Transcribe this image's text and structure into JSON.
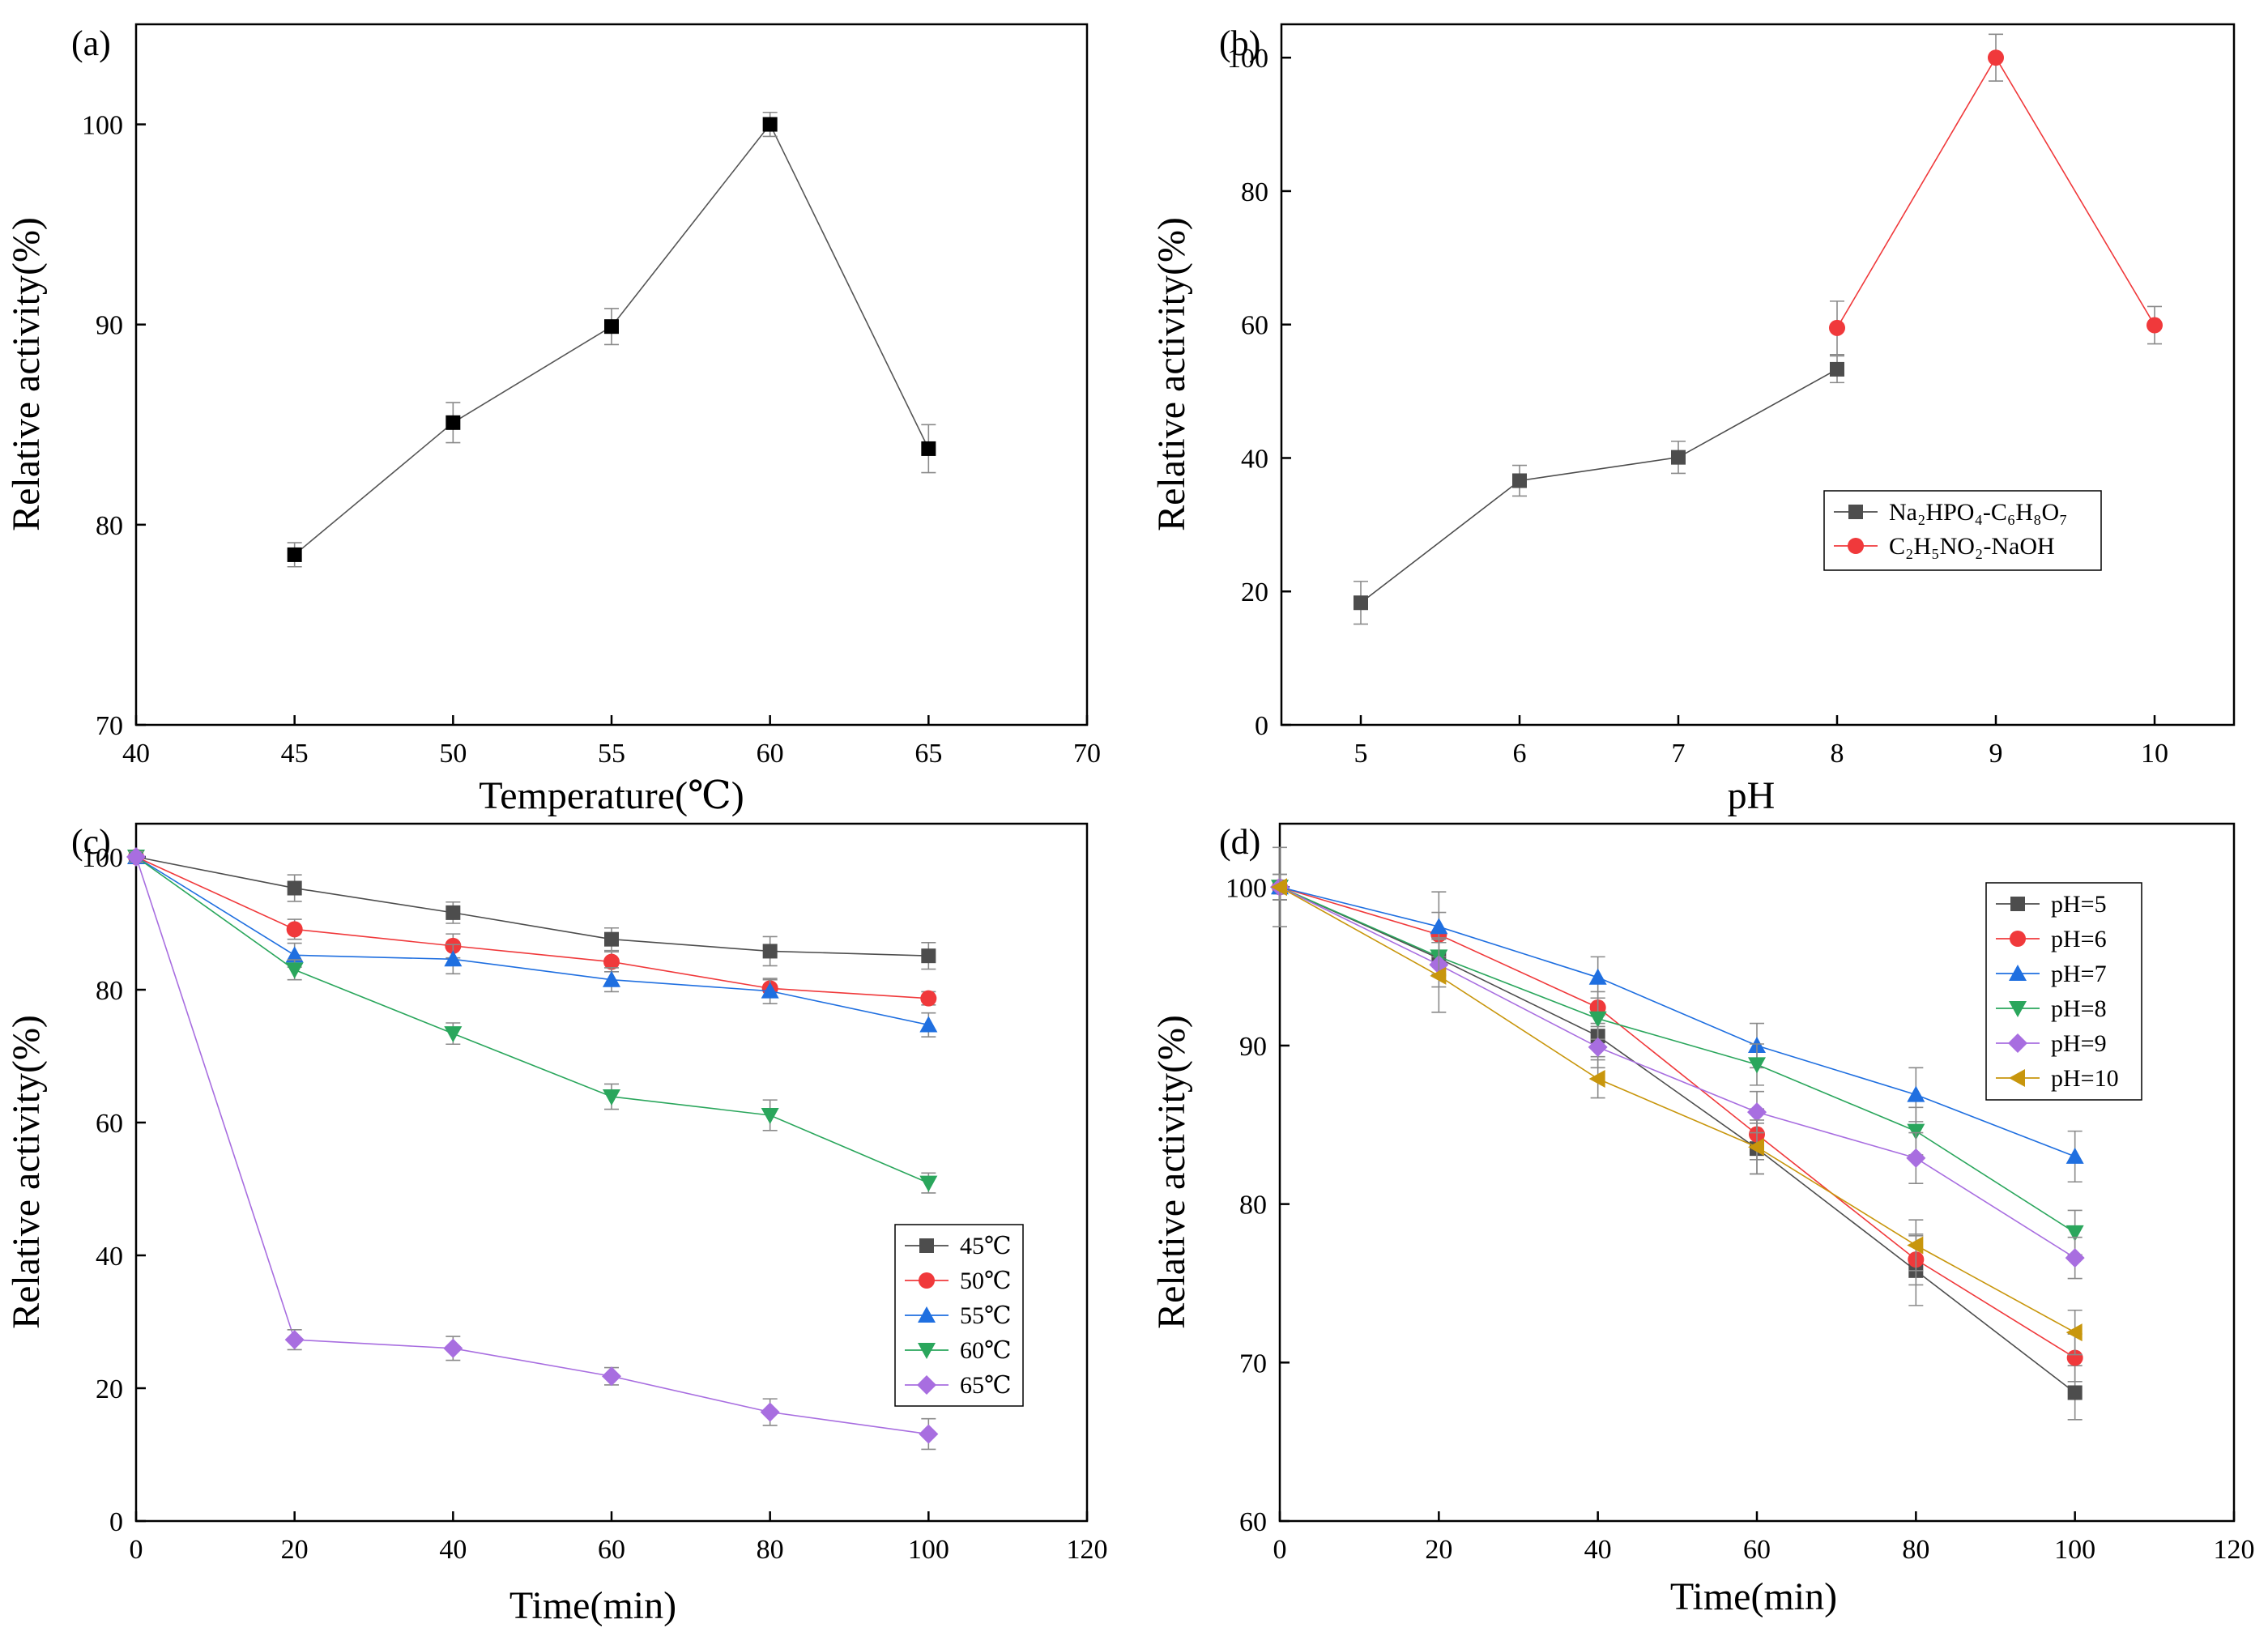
{
  "figure": {
    "background": "#ffffff",
    "error_bar_color": "#8a8a8a"
  },
  "chart_data": [
    {
      "id": "a",
      "type": "line",
      "panel_label": "(a)",
      "xlabel": "Temperature(℃)",
      "ylabel": "Relative activity(%)",
      "xlim": [
        40,
        70
      ],
      "ylim": [
        70,
        105
      ],
      "xticks": [
        40,
        45,
        50,
        55,
        60,
        65,
        70
      ],
      "yticks": [
        70,
        80,
        90,
        100
      ],
      "legend": null,
      "series": [
        {
          "name": "activity",
          "color": "#000000",
          "line_color": "#555555",
          "marker": "square",
          "x": [
            45,
            50,
            55,
            60,
            65
          ],
          "y": [
            78.5,
            85.1,
            89.9,
            100,
            83.8
          ],
          "err": [
            0.6,
            1.0,
            0.9,
            0.6,
            1.2
          ]
        }
      ]
    },
    {
      "id": "b",
      "type": "line",
      "panel_label": "(b)",
      "xlabel": "pH",
      "ylabel": "Relative activity(%)",
      "xlim": [
        4.5,
        10.5
      ],
      "ylim": [
        0,
        105
      ],
      "xticks": [
        5,
        6,
        7,
        8,
        9,
        10
      ],
      "yticks": [
        0,
        20,
        40,
        60,
        80,
        100
      ],
      "legend": "mid-right",
      "series": [
        {
          "name": "Na₂HPO₄-C₆H₈O₇",
          "color": "#4d4d4d",
          "line_color": "#4d4d4d",
          "marker": "square",
          "x": [
            5,
            6,
            7,
            8
          ],
          "y": [
            18.3,
            36.6,
            40.1,
            53.3
          ],
          "err": [
            3.2,
            2.3,
            2.4,
            2.0
          ]
        },
        {
          "name": "C₂H₅NO₂-NaOH",
          "color": "#f0393b",
          "line_color": "#f0393b",
          "marker": "circle",
          "x": [
            8,
            9,
            10
          ],
          "y": [
            59.5,
            100,
            59.9
          ],
          "err": [
            4.0,
            3.5,
            2.8
          ]
        }
      ]
    },
    {
      "id": "c",
      "type": "line",
      "panel_label": "(c)",
      "xlabel": "Time(min)",
      "ylabel": "Relative activity(%)",
      "xlim": [
        0,
        120
      ],
      "ylim": [
        0,
        105
      ],
      "xticks": [
        0,
        20,
        40,
        60,
        80,
        100,
        120
      ],
      "yticks": [
        0,
        20,
        40,
        60,
        80,
        100
      ],
      "legend": "lower-right",
      "series": [
        {
          "name": "45℃",
          "color": "#4d4d4d",
          "marker": "square",
          "x": [
            0,
            20,
            40,
            60,
            80,
            100
          ],
          "y": [
            100,
            95.3,
            91.6,
            87.6,
            85.8,
            85.1
          ],
          "err": [
            0.8,
            2.0,
            1.6,
            1.7,
            2.2,
            2.0
          ]
        },
        {
          "name": "50℃",
          "color": "#f0393b",
          "marker": "circle",
          "x": [
            0,
            20,
            40,
            60,
            80,
            100
          ],
          "y": [
            100,
            89.1,
            86.6,
            84.2,
            80.2,
            78.7
          ],
          "err": [
            0.8,
            1.5,
            1.8,
            1.5,
            1.3,
            1.0
          ]
        },
        {
          "name": "55℃",
          "color": "#1f6fe0",
          "marker": "triangle-up",
          "x": [
            0,
            20,
            40,
            60,
            80,
            100
          ],
          "y": [
            100,
            85.2,
            84.6,
            81.5,
            79.8,
            74.7
          ],
          "err": [
            0.8,
            1.8,
            2.2,
            1.8,
            1.9,
            1.8
          ]
        },
        {
          "name": "60℃",
          "color": "#2aa65c",
          "marker": "triangle-down",
          "x": [
            0,
            20,
            40,
            60,
            80,
            100
          ],
          "y": [
            100,
            83.0,
            73.4,
            63.9,
            61.1,
            50.9
          ],
          "err": [
            0.8,
            1.5,
            1.6,
            1.9,
            2.3,
            1.5
          ]
        },
        {
          "name": "65℃",
          "color": "#a86ee0",
          "marker": "diamond",
          "x": [
            0,
            20,
            40,
            60,
            80,
            100
          ],
          "y": [
            100,
            27.3,
            26.0,
            21.8,
            16.4,
            13.1
          ],
          "err": [
            0.8,
            1.5,
            1.8,
            1.3,
            2.0,
            2.3
          ]
        }
      ]
    },
    {
      "id": "d",
      "type": "line",
      "panel_label": "(d)",
      "xlabel": "Time(min)",
      "ylabel": "Relative activity(%)",
      "xlim": [
        0,
        120
      ],
      "ylim": [
        60,
        104
      ],
      "xticks": [
        0,
        20,
        40,
        60,
        80,
        100,
        120
      ],
      "yticks": [
        60,
        70,
        80,
        90,
        100
      ],
      "legend": "upper-right",
      "series": [
        {
          "name": "pH=5",
          "color": "#4d4d4d",
          "marker": "square",
          "x": [
            0,
            20,
            40,
            60,
            80,
            100
          ],
          "y": [
            100,
            95.5,
            90.6,
            83.5,
            75.8,
            68.1
          ],
          "err": [
            0.8,
            1.0,
            1.3,
            1.6,
            2.2,
            1.7
          ]
        },
        {
          "name": "pH=6",
          "color": "#f0393b",
          "marker": "circle",
          "x": [
            0,
            20,
            40,
            60,
            80,
            100
          ],
          "y": [
            100,
            97.0,
            92.4,
            84.4,
            76.5,
            70.3
          ],
          "err": [
            0.8,
            1.4,
            1.0,
            1.6,
            1.6,
            1.5
          ]
        },
        {
          "name": "pH=7",
          "color": "#1f6fe0",
          "marker": "triangle-up",
          "x": [
            0,
            20,
            40,
            60,
            80,
            100
          ],
          "y": [
            100,
            97.5,
            94.3,
            90.0,
            86.9,
            83.0
          ],
          "err": [
            0.8,
            2.2,
            1.3,
            1.4,
            1.7,
            1.6
          ]
        },
        {
          "name": "pH=8",
          "color": "#2aa65c",
          "marker": "triangle-down",
          "x": [
            0,
            20,
            40,
            60,
            80,
            100
          ],
          "y": [
            100,
            95.6,
            91.7,
            88.8,
            84.6,
            78.2
          ],
          "err": [
            0.8,
            1.2,
            1.3,
            1.3,
            1.5,
            1.4
          ]
        },
        {
          "name": "pH=9",
          "color": "#a86ee0",
          "marker": "diamond",
          "x": [
            0,
            20,
            40,
            60,
            80,
            100
          ],
          "y": [
            100,
            95.1,
            89.9,
            85.8,
            82.9,
            76.6
          ],
          "err": [
            0.8,
            1.4,
            1.3,
            1.3,
            1.6,
            1.3
          ]
        },
        {
          "name": "pH=10",
          "color": "#c8960c",
          "marker": "triangle-left",
          "x": [
            0,
            20,
            40,
            60,
            80,
            100
          ],
          "y": [
            100,
            94.4,
            87.9,
            83.6,
            77.4,
            71.9
          ],
          "err": [
            2.5,
            2.3,
            1.2,
            1.7,
            1.6,
            1.4
          ]
        }
      ]
    }
  ]
}
